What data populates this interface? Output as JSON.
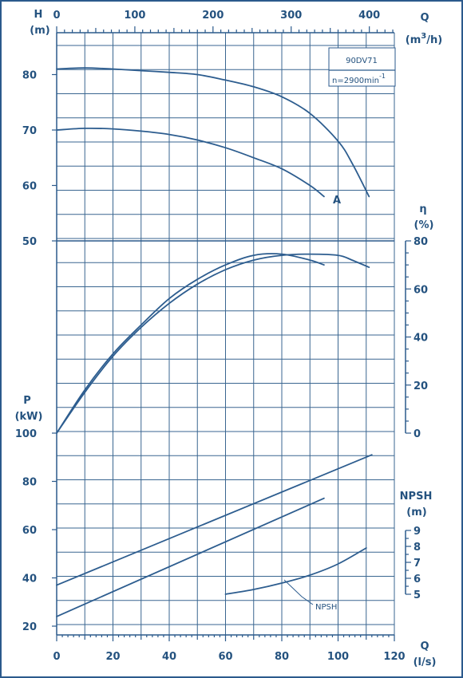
{
  "chart_data": {
    "type": "line",
    "model": "90DV71",
    "speed_label": "n=2900min",
    "speed_exp": "-1",
    "curve_label_a": "A",
    "axes": {
      "q_ls": {
        "title": "Q",
        "unit": "(l/s)",
        "min": 0,
        "max": 120,
        "ticks": [
          "0",
          "20",
          "40",
          "60",
          "80",
          "100",
          "120"
        ]
      },
      "q_m3h": {
        "title": "Q",
        "unit_pre": "(m",
        "unit_sup": "3",
        "unit_post": "/h)",
        "min": 0,
        "max": 432,
        "ticks": [
          "0",
          "100",
          "200",
          "300",
          "400"
        ]
      },
      "h": {
        "title": "H",
        "unit": "(m)",
        "ticks": [
          "50",
          "60",
          "70",
          "80"
        ]
      },
      "eta": {
        "title": "η",
        "unit": "(%)",
        "ticks": [
          "0",
          "20",
          "40",
          "60",
          "80"
        ]
      },
      "p": {
        "title": "P",
        "unit": "(kW)",
        "ticks": [
          "20",
          "40",
          "60",
          "80",
          "100"
        ]
      },
      "npsh": {
        "title": "NPSH",
        "unit": "(m)",
        "ticks": [
          "5",
          "6",
          "7",
          "8",
          "9"
        ]
      }
    },
    "series": [
      {
        "group": "H",
        "label": "",
        "x": [
          0,
          10,
          20,
          30,
          40,
          50,
          60,
          70,
          80,
          90,
          100,
          105,
          111
        ],
        "y": [
          81,
          81.2,
          81,
          80.7,
          80.4,
          80,
          79,
          77.8,
          76,
          73,
          68,
          64,
          58
        ]
      },
      {
        "group": "H",
        "label": "A",
        "x": [
          0,
          10,
          20,
          30,
          40,
          50,
          60,
          70,
          80,
          90,
          95
        ],
        "y": [
          70,
          70.3,
          70.2,
          69.8,
          69.2,
          68.2,
          66.8,
          65,
          63,
          60,
          58
        ]
      },
      {
        "group": "eta",
        "label": "",
        "x": [
          0,
          10,
          20,
          30,
          40,
          50,
          60,
          70,
          80,
          90,
          100,
          105,
          111
        ],
        "y": [
          0,
          17,
          32,
          44,
          54,
          62,
          68,
          72,
          74,
          74.5,
          74,
          72,
          69
        ]
      },
      {
        "group": "eta",
        "label": "",
        "x": [
          0,
          10,
          20,
          30,
          40,
          50,
          60,
          70,
          80,
          90,
          95
        ],
        "y": [
          0,
          18,
          33,
          45,
          56,
          64,
          70,
          74,
          74.5,
          72,
          70
        ]
      },
      {
        "group": "P",
        "label": "",
        "x": [
          0,
          112
        ],
        "y": [
          37,
          91
        ]
      },
      {
        "group": "P",
        "label": "",
        "x": [
          0,
          95
        ],
        "y": [
          24,
          73
        ]
      },
      {
        "group": "NPSH",
        "label": "NPSH",
        "x": [
          60,
          70,
          80,
          90,
          100,
          110
        ],
        "y": [
          5,
          5.3,
          5.7,
          6.2,
          6.9,
          7.9
        ]
      }
    ]
  }
}
